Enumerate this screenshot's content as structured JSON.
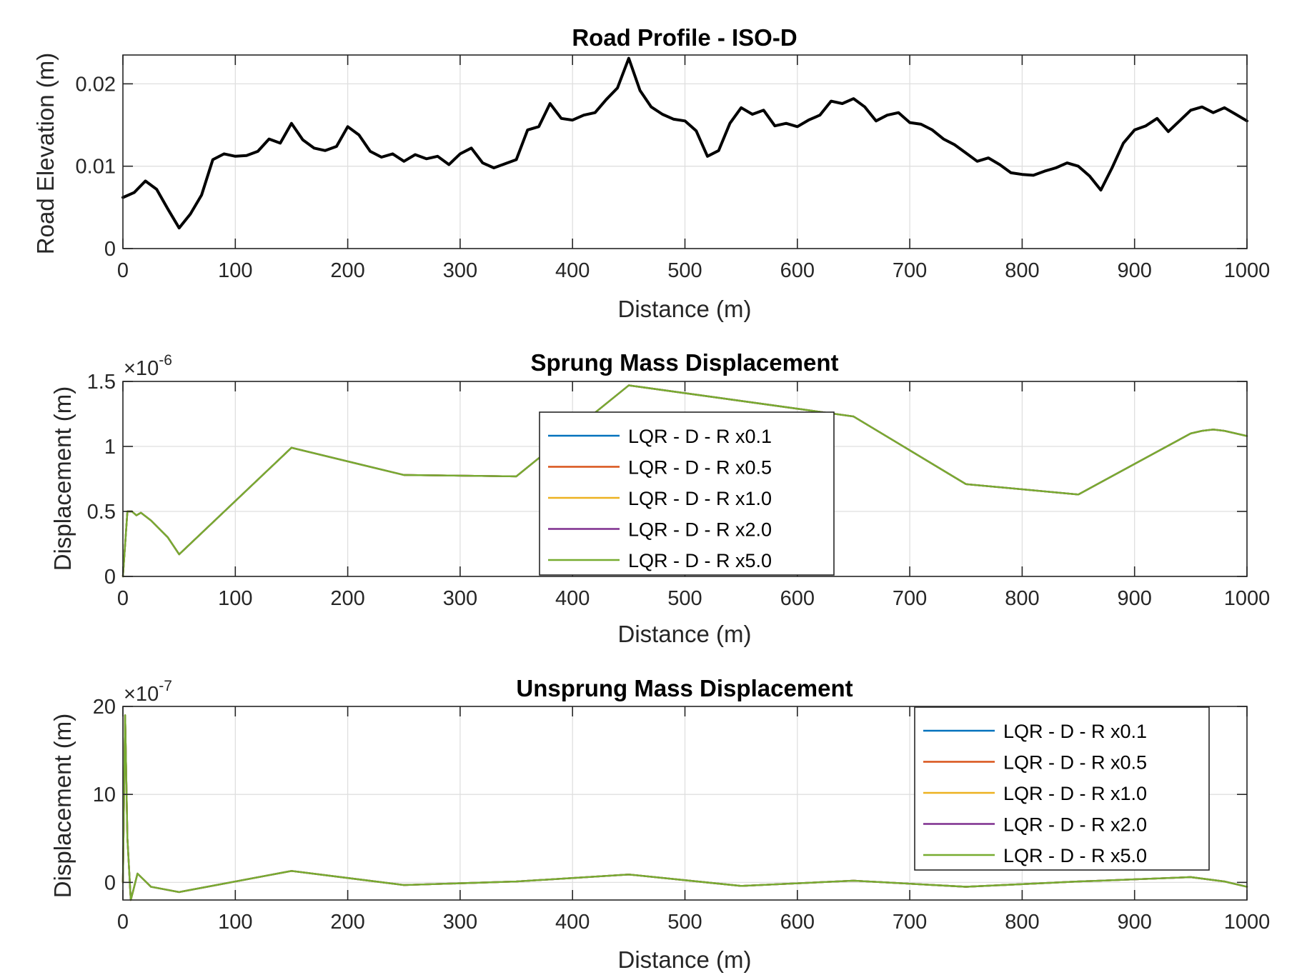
{
  "chart_data": [
    {
      "type": "line",
      "title": "Road Profile - ISO-D",
      "xlabel": "Distance (m)",
      "ylabel": "Road Elevation (m)",
      "xlim": [
        0,
        1000
      ],
      "ylim": [
        0,
        0.0235
      ],
      "xticks": [
        "0",
        "100",
        "200",
        "300",
        "400",
        "500",
        "600",
        "700",
        "800",
        "900",
        "1000"
      ],
      "yticks": [
        {
          "value": 0,
          "label": "0"
        },
        {
          "value": 0.01,
          "label": "0.01"
        },
        {
          "value": 0.02,
          "label": "0.02"
        }
      ],
      "grid": true,
      "series": [
        {
          "color": "#000000",
          "x": [
            0,
            10,
            20,
            30,
            40,
            50,
            60,
            70,
            80,
            90,
            100,
            110,
            120,
            130,
            140,
            150,
            160,
            170,
            180,
            190,
            200,
            210,
            220,
            230,
            240,
            250,
            260,
            270,
            280,
            290,
            300,
            310,
            320,
            330,
            340,
            350,
            360,
            370,
            380,
            390,
            400,
            410,
            420,
            430,
            440,
            450,
            460,
            470,
            480,
            490,
            500,
            510,
            520,
            530,
            540,
            550,
            560,
            570,
            580,
            590,
            600,
            610,
            620,
            630,
            640,
            650,
            660,
            670,
            680,
            690,
            700,
            710,
            720,
            730,
            740,
            750,
            760,
            770,
            780,
            790,
            800,
            810,
            820,
            830,
            840,
            850,
            860,
            870,
            880,
            890,
            900,
            910,
            920,
            930,
            940,
            950,
            960,
            970,
            980,
            990,
            1000
          ],
          "y": [
            0.0062,
            0.0068,
            0.0082,
            0.0072,
            0.0048,
            0.0025,
            0.0042,
            0.0065,
            0.0108,
            0.0115,
            0.0112,
            0.0113,
            0.0118,
            0.0133,
            0.0128,
            0.0152,
            0.0132,
            0.0122,
            0.0119,
            0.0124,
            0.0148,
            0.0138,
            0.0118,
            0.0111,
            0.0115,
            0.0106,
            0.0114,
            0.0109,
            0.0112,
            0.0102,
            0.0115,
            0.0122,
            0.0104,
            0.0098,
            0.0103,
            0.0108,
            0.0144,
            0.0148,
            0.0176,
            0.0158,
            0.0156,
            0.0162,
            0.0165,
            0.0181,
            0.0195,
            0.0231,
            0.0192,
            0.0172,
            0.0163,
            0.0157,
            0.0155,
            0.0143,
            0.0112,
            0.0119,
            0.0152,
            0.0171,
            0.0163,
            0.0168,
            0.0149,
            0.0152,
            0.0148,
            0.0156,
            0.0162,
            0.0179,
            0.0176,
            0.0182,
            0.0172,
            0.0155,
            0.0162,
            0.0165,
            0.0153,
            0.0151,
            0.0144,
            0.0133,
            0.0126,
            0.0116,
            0.0106,
            0.011,
            0.0102,
            0.0092,
            0.009,
            0.0089,
            0.0094,
            0.0098,
            0.0104,
            0.01,
            0.0088,
            0.0071,
            0.0098,
            0.0128,
            0.0144,
            0.0149,
            0.0158,
            0.0142,
            0.0155,
            0.0168,
            0.0172,
            0.0165,
            0.0171,
            0.0163,
            0.0155
          ]
        }
      ]
    },
    {
      "type": "line",
      "title": "Sprung Mass Displacement",
      "xlabel": "Distance (m)",
      "ylabel": "Displacement (m)",
      "exponent": {
        "base": "×10",
        "power": "-6"
      },
      "xlim": [
        0,
        1000
      ],
      "ylim": [
        0,
        1.5
      ],
      "xticks": [
        "0",
        "100",
        "200",
        "300",
        "400",
        "500",
        "600",
        "700",
        "800",
        "900",
        "1000"
      ],
      "yticks": [
        {
          "value": 0,
          "label": "0"
        },
        {
          "value": 0.5,
          "label": "0.5"
        },
        {
          "value": 1,
          "label": "1"
        },
        {
          "value": 1.5,
          "label": "1.5"
        }
      ],
      "grid": true,
      "legend_position": "center",
      "series": [
        {
          "name": "LQR - D - R x0.1",
          "color": "#0072BD",
          "x": [
            0,
            4,
            8,
            12,
            16,
            25,
            40,
            50,
            150,
            250,
            350,
            450,
            650,
            750,
            850,
            950,
            960,
            970,
            980,
            990,
            1000
          ],
          "y": [
            0,
            0.5,
            0.5,
            0.47,
            0.49,
            0.43,
            0.3,
            0.17,
            0.99,
            0.78,
            0.77,
            1.47,
            1.23,
            0.71,
            0.63,
            1.1,
            1.12,
            1.13,
            1.12,
            1.1,
            1.08
          ]
        },
        {
          "name": "LQR - D - R x0.5",
          "color": "#D95319",
          "x": [
            0,
            4,
            8,
            12,
            16,
            25,
            40,
            50,
            150,
            250,
            350,
            450,
            650,
            750,
            850,
            950,
            960,
            970,
            980,
            990,
            1000
          ],
          "y": [
            0,
            0.5,
            0.5,
            0.47,
            0.49,
            0.43,
            0.3,
            0.17,
            0.99,
            0.78,
            0.77,
            1.47,
            1.23,
            0.71,
            0.63,
            1.1,
            1.12,
            1.13,
            1.12,
            1.1,
            1.08
          ]
        },
        {
          "name": "LQR - D - R x1.0",
          "color": "#EDB120",
          "x": [
            0,
            4,
            8,
            12,
            16,
            25,
            40,
            50,
            150,
            250,
            350,
            450,
            650,
            750,
            850,
            950,
            960,
            970,
            980,
            990,
            1000
          ],
          "y": [
            0,
            0.5,
            0.5,
            0.47,
            0.49,
            0.43,
            0.3,
            0.17,
            0.99,
            0.78,
            0.77,
            1.47,
            1.23,
            0.71,
            0.63,
            1.1,
            1.12,
            1.13,
            1.12,
            1.1,
            1.08
          ]
        },
        {
          "name": "LQR - D - R x2.0",
          "color": "#7E2F8E",
          "x": [
            0,
            4,
            8,
            12,
            16,
            25,
            40,
            50,
            150,
            250,
            350,
            450,
            650,
            750,
            850,
            950,
            960,
            970,
            980,
            990,
            1000
          ],
          "y": [
            0,
            0.5,
            0.5,
            0.47,
            0.49,
            0.43,
            0.3,
            0.17,
            0.99,
            0.78,
            0.77,
            1.47,
            1.23,
            0.71,
            0.63,
            1.1,
            1.12,
            1.13,
            1.12,
            1.1,
            1.08
          ]
        },
        {
          "name": "LQR - D - R x5.0",
          "color": "#77AC30",
          "x": [
            0,
            4,
            8,
            12,
            16,
            25,
            40,
            50,
            150,
            250,
            350,
            450,
            650,
            750,
            850,
            950,
            960,
            970,
            980,
            990,
            1000
          ],
          "y": [
            0,
            0.5,
            0.5,
            0.47,
            0.49,
            0.43,
            0.3,
            0.17,
            0.99,
            0.78,
            0.77,
            1.47,
            1.23,
            0.71,
            0.63,
            1.1,
            1.12,
            1.13,
            1.12,
            1.1,
            1.08
          ]
        }
      ]
    },
    {
      "type": "line",
      "title": "Unsprung Mass Displacement",
      "xlabel": "Distance (m)",
      "ylabel": "Displacement (m)",
      "exponent": {
        "base": "×10",
        "power": "-7"
      },
      "xlim": [
        0,
        1000
      ],
      "ylim": [
        -2,
        20
      ],
      "xticks": [
        "0",
        "100",
        "200",
        "300",
        "400",
        "500",
        "600",
        "700",
        "800",
        "900",
        "1000"
      ],
      "yticks": [
        {
          "value": 0,
          "label": "0"
        },
        {
          "value": 10,
          "label": "10"
        },
        {
          "value": 20,
          "label": "20"
        }
      ],
      "grid": true,
      "legend_position": "top-right",
      "series": [
        {
          "name": "LQR - D - R x0.1",
          "color": "#0072BD",
          "x": [
            0,
            2,
            4,
            7,
            9,
            13,
            17,
            25,
            50,
            150,
            250,
            350,
            450,
            550,
            650,
            750,
            850,
            950,
            980,
            1000
          ],
          "y": [
            0,
            19,
            5,
            -2,
            -1,
            1,
            0.5,
            -0.5,
            -1.1,
            1.3,
            -0.3,
            0.1,
            0.9,
            -0.4,
            0.2,
            -0.5,
            0.1,
            0.6,
            0.1,
            -0.5
          ]
        },
        {
          "name": "LQR - D - R x0.5",
          "color": "#D95319",
          "x": [
            0,
            2,
            4,
            7,
            9,
            13,
            17,
            25,
            50,
            150,
            250,
            350,
            450,
            550,
            650,
            750,
            850,
            950,
            980,
            1000
          ],
          "y": [
            0,
            19,
            5,
            -2,
            -1,
            1,
            0.5,
            -0.5,
            -1.1,
            1.3,
            -0.3,
            0.1,
            0.9,
            -0.4,
            0.2,
            -0.5,
            0.1,
            0.6,
            0.1,
            -0.5
          ]
        },
        {
          "name": "LQR - D - R x1.0",
          "color": "#EDB120",
          "x": [
            0,
            2,
            4,
            7,
            9,
            13,
            17,
            25,
            50,
            150,
            250,
            350,
            450,
            550,
            650,
            750,
            850,
            950,
            980,
            1000
          ],
          "y": [
            0,
            19,
            5,
            -2,
            -1,
            1,
            0.5,
            -0.5,
            -1.1,
            1.3,
            -0.3,
            0.1,
            0.9,
            -0.4,
            0.2,
            -0.5,
            0.1,
            0.6,
            0.1,
            -0.5
          ]
        },
        {
          "name": "LQR - D - R x2.0",
          "color": "#7E2F8E",
          "x": [
            0,
            2,
            4,
            7,
            9,
            13,
            17,
            25,
            50,
            150,
            250,
            350,
            450,
            550,
            650,
            750,
            850,
            950,
            980,
            1000
          ],
          "y": [
            0,
            19,
            5,
            -2,
            -1,
            1,
            0.5,
            -0.5,
            -1.1,
            1.3,
            -0.3,
            0.1,
            0.9,
            -0.4,
            0.2,
            -0.5,
            0.1,
            0.6,
            0.1,
            -0.5
          ]
        },
        {
          "name": "LQR - D - R x5.0",
          "color": "#77AC30",
          "x": [
            0,
            2,
            4,
            7,
            9,
            13,
            17,
            25,
            50,
            150,
            250,
            350,
            450,
            550,
            650,
            750,
            850,
            950,
            980,
            1000
          ],
          "y": [
            0,
            19,
            5,
            -2,
            -1,
            1,
            0.5,
            -0.5,
            -1.1,
            1.3,
            -0.3,
            0.1,
            0.9,
            -0.4,
            0.2,
            -0.5,
            0.1,
            0.6,
            0.1,
            -0.5
          ]
        }
      ]
    }
  ]
}
